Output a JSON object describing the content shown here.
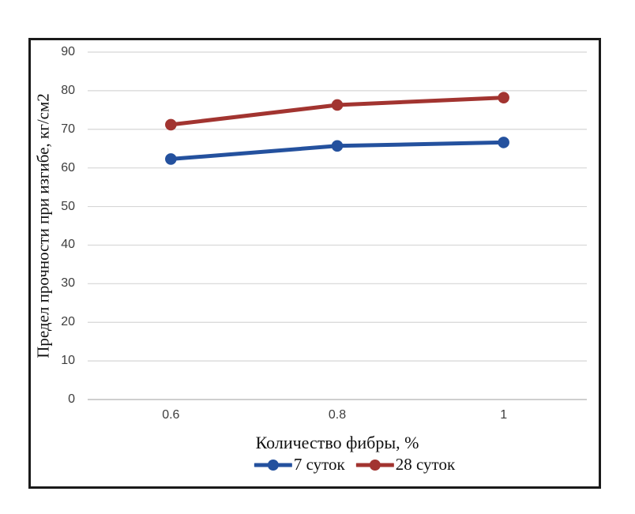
{
  "chart_data": {
    "type": "line",
    "title": "",
    "categories": [
      "0.6",
      "0.8",
      "1"
    ],
    "series": [
      {
        "name": "7 суток",
        "color": "#24519E",
        "values": [
          62.3,
          65.7,
          66.6
        ]
      },
      {
        "name": "28 суток",
        "color": "#A23430",
        "values": [
          71.2,
          76.3,
          78.2
        ]
      }
    ],
    "xlabel": "Количество фибры, %",
    "ylabel": "Предел прочности при изгибе, кг/см2",
    "ylim": [
      0,
      90
    ],
    "ytick_step": 10,
    "grid": true,
    "legend_position": "bottom",
    "colors": {
      "gridline": "#D6D6D6",
      "axis_line": "#BFBFBF",
      "tick_text": "#3D3D3D",
      "frame_border": "#1A1A1A"
    }
  }
}
